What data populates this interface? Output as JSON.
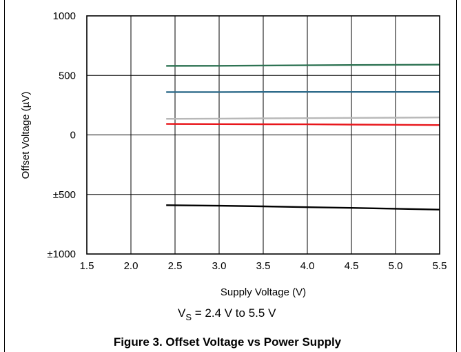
{
  "chart_data": {
    "type": "line",
    "xlabel": "Supply Voltage (V)",
    "ylabel": "Offset Voltage (µV)",
    "xlim": [
      1.5,
      5.5
    ],
    "ylim": [
      -1000,
      1000
    ],
    "x_ticks": [
      1.5,
      2.0,
      2.5,
      3.0,
      3.5,
      4.0,
      4.5,
      5.0,
      5.5
    ],
    "x_tick_labels": [
      "1.5",
      "2.0",
      "2.5",
      "3.0",
      "3.5",
      "4.0",
      "4.5",
      "5.0",
      "5.5"
    ],
    "y_ticks": [
      1000,
      500,
      0,
      -500,
      -1000
    ],
    "y_tick_labels": [
      "1000",
      "500",
      "0",
      "±500",
      "±1000"
    ],
    "grid": true,
    "legend": "none",
    "series": [
      {
        "color": "#2e7353",
        "x": [
          2.4,
          3.0,
          3.5,
          4.0,
          4.5,
          5.0,
          5.5
        ],
        "y": [
          580,
          581,
          583,
          585,
          587,
          589,
          590
        ]
      },
      {
        "color": "#2e6b8a",
        "x": [
          2.4,
          3.0,
          3.5,
          4.0,
          4.5,
          5.0,
          5.5
        ],
        "y": [
          360,
          360,
          361,
          361,
          361,
          361,
          361
        ]
      },
      {
        "color": "#b8b8b8",
        "x": [
          2.4,
          3.0,
          3.5,
          4.0,
          4.5,
          5.0,
          5.5
        ],
        "y": [
          135,
          137,
          139,
          141,
          143,
          145,
          147
        ]
      },
      {
        "color": "#e8161b",
        "x": [
          2.4,
          3.0,
          3.5,
          4.0,
          4.5,
          5.0,
          5.5
        ],
        "y": [
          92,
          91,
          90,
          89,
          87,
          85,
          83
        ]
      },
      {
        "color": "#000000",
        "x": [
          2.4,
          3.0,
          3.5,
          4.0,
          4.5,
          5.0,
          5.5
        ],
        "y": [
          -590,
          -595,
          -600,
          -607,
          -613,
          -620,
          -627
        ]
      }
    ]
  },
  "condition": {
    "prefix": "V",
    "subscript": "S",
    "rest": " = 2.4 V to 5.5 V"
  },
  "caption": "Figure 3. Offset Voltage vs Power Supply"
}
